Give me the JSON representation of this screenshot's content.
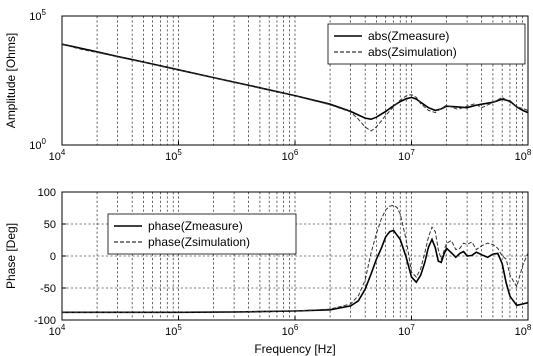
{
  "chart_data": [
    {
      "type": "line",
      "title": "",
      "xlabel": "",
      "ylabel": "Amplitude [Ohms]",
      "xscale": "log",
      "yscale": "log",
      "xlim": [
        10000,
        100000000
      ],
      "ylim": [
        1,
        100000
      ],
      "grid": true,
      "legend_position": "top-right",
      "x_ticks": [
        "10^4",
        "10^5",
        "10^6",
        "10^7",
        "10^8"
      ],
      "y_ticks": [
        "10^0",
        "10^5"
      ],
      "series": [
        {
          "name": "abs(Zmeasure)",
          "style": "solid",
          "x": [
            10000,
            12000,
            15000,
            20000,
            30000,
            50000,
            100000,
            200000,
            500000,
            1000000,
            2000000,
            3000000,
            4000000,
            4500000,
            5000000,
            6000000,
            7000000,
            8000000,
            9000000,
            10000000,
            11000000,
            12000000,
            14000000,
            16000000,
            18000000,
            20000000,
            25000000,
            30000000,
            35000000,
            40000000,
            50000000,
            60000000,
            70000000,
            80000000,
            90000000,
            100000000
          ],
          "y": [
            8000,
            6800,
            5400,
            4100,
            2700,
            1650,
            820,
            410,
            165,
            82,
            38,
            20,
            11,
            10,
            12,
            20,
            33,
            48,
            62,
            70,
            60,
            45,
            28,
            22,
            25,
            32,
            30,
            28,
            34,
            38,
            45,
            60,
            50,
            30,
            22,
            18
          ]
        },
        {
          "name": "abs(Zsimulation)",
          "style": "dashed",
          "x": [
            10000,
            12000,
            15000,
            20000,
            30000,
            50000,
            100000,
            200000,
            500000,
            1000000,
            2000000,
            3000000,
            3500000,
            4000000,
            4500000,
            5000000,
            6000000,
            7000000,
            8000000,
            9000000,
            10000000,
            11000000,
            12000000,
            14000000,
            16000000,
            18000000,
            20000000,
            25000000,
            30000000,
            35000000,
            40000000,
            50000000,
            60000000,
            70000000,
            80000000,
            90000000,
            100000000
          ],
          "y": [
            8500,
            6400,
            5000,
            3900,
            2600,
            1600,
            800,
            400,
            160,
            80,
            36,
            19,
            10,
            5,
            3.5,
            5,
            14,
            30,
            55,
            80,
            90,
            70,
            40,
            22,
            18,
            26,
            35,
            24,
            32,
            40,
            28,
            44,
            70,
            45,
            30,
            26,
            22
          ]
        }
      ]
    },
    {
      "type": "line",
      "title": "",
      "xlabel": "Frequency [Hz]",
      "ylabel": "Phase [Deg]",
      "xscale": "log",
      "xlim": [
        10000,
        100000000
      ],
      "ylim": [
        -100,
        100
      ],
      "grid": true,
      "legend_position": "top-left",
      "x_ticks": [
        "10^4",
        "10^5",
        "10^6",
        "10^7",
        "10^8"
      ],
      "y_ticks": [
        "-100",
        "-50",
        "0",
        "50",
        "100"
      ],
      "series": [
        {
          "name": "phase(Zmeasure)",
          "style": "solid",
          "x": [
            10000,
            30000,
            100000,
            300000,
            1000000,
            2000000,
            3000000,
            3500000,
            4000000,
            4500000,
            5000000,
            5500000,
            6000000,
            6500000,
            7000000,
            8000000,
            9000000,
            10000000,
            11000000,
            12000000,
            13000000,
            14000000,
            15000000,
            16000000,
            17000000,
            18000000,
            19000000,
            20000000,
            22000000,
            24000000,
            26000000,
            28000000,
            30000000,
            33000000,
            36000000,
            40000000,
            45000000,
            50000000,
            55000000,
            60000000,
            65000000,
            70000000,
            80000000,
            90000000,
            100000000
          ],
          "y": [
            -88,
            -88,
            -88,
            -87.5,
            -86,
            -84,
            -78,
            -70,
            -52,
            -28,
            -5,
            12,
            30,
            38,
            40,
            26,
            -2,
            -33,
            -41,
            -30,
            -10,
            14,
            26,
            13,
            -8,
            -10,
            3,
            12,
            5,
            -2,
            4,
            7,
            0,
            1,
            6,
            2,
            -2,
            3,
            4,
            -12,
            -42,
            -63,
            -77,
            -75,
            -73
          ]
        },
        {
          "name": "phase(Zsimulation)",
          "style": "dashed",
          "x": [
            10000,
            30000,
            100000,
            300000,
            1000000,
            2000000,
            3000000,
            3500000,
            4000000,
            4500000,
            5000000,
            5500000,
            6000000,
            6500000,
            7000000,
            7500000,
            8000000,
            9000000,
            10000000,
            11000000,
            12000000,
            13000000,
            14000000,
            15000000,
            16000000,
            17000000,
            18000000,
            20000000,
            22000000,
            24000000,
            26000000,
            28000000,
            30000000,
            33000000,
            36000000,
            40000000,
            45000000,
            50000000,
            55000000,
            60000000,
            65000000,
            70000000,
            80000000,
            90000000,
            100000000
          ],
          "y": [
            -88,
            -88,
            -87.5,
            -87,
            -86,
            -83,
            -75,
            -62,
            -38,
            5,
            35,
            58,
            72,
            78,
            79,
            76,
            66,
            25,
            -25,
            -33,
            -20,
            5,
            30,
            45,
            38,
            10,
            -5,
            20,
            24,
            10,
            12,
            20,
            18,
            22,
            10,
            16,
            20,
            18,
            12,
            0,
            -5,
            -30,
            -48,
            -15,
            5
          ]
        }
      ]
    }
  ]
}
